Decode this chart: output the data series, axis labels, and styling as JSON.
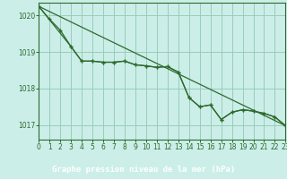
{
  "title": "Graphe pression niveau de la mer (hPa)",
  "bg_color": "#cceee8",
  "plot_bg_color": "#cceee8",
  "label_bg_color": "#3a7a3a",
  "label_text_color": "#ffffff",
  "line_color": "#2d6a2d",
  "grid_color": "#99ccbb",
  "xlim": [
    0,
    23
  ],
  "ylim": [
    1016.6,
    1020.35
  ],
  "yticks": [
    1017,
    1018,
    1019,
    1020
  ],
  "xticks": [
    0,
    1,
    2,
    3,
    4,
    5,
    6,
    7,
    8,
    9,
    10,
    11,
    12,
    13,
    14,
    15,
    16,
    17,
    18,
    19,
    20,
    21,
    22,
    23
  ],
  "series1_x": [
    0,
    1,
    2,
    3,
    4,
    5,
    6,
    7,
    8,
    9,
    10,
    11,
    12,
    13,
    14,
    15,
    16,
    17,
    18,
    19,
    20,
    21,
    22,
    23
  ],
  "series1_y": [
    1020.25,
    1019.9,
    1019.6,
    1019.15,
    1018.75,
    1018.75,
    1018.72,
    1018.72,
    1018.75,
    1018.65,
    1018.62,
    1018.58,
    1018.6,
    1018.45,
    1017.75,
    1017.5,
    1017.55,
    1017.15,
    1017.35,
    1017.42,
    1017.38,
    1017.32,
    1017.22,
    1016.98
  ],
  "series2_x": [
    0,
    3,
    4,
    5,
    6,
    7,
    8,
    9,
    10,
    11,
    12,
    13,
    14,
    15,
    16,
    17,
    18,
    19,
    20,
    21,
    22,
    23
  ],
  "series2_y": [
    1020.25,
    1019.15,
    1018.75,
    1018.75,
    1018.72,
    1018.72,
    1018.75,
    1018.65,
    1018.62,
    1018.58,
    1018.6,
    1018.45,
    1017.75,
    1017.5,
    1017.55,
    1017.15,
    1017.35,
    1017.42,
    1017.38,
    1017.32,
    1017.22,
    1016.98
  ],
  "trend_x": [
    0,
    23
  ],
  "trend_y": [
    1020.25,
    1016.98
  ]
}
